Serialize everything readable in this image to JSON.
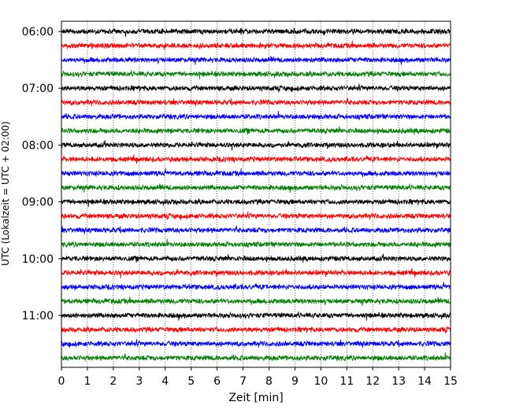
{
  "chart_data": {
    "type": "line",
    "title": "",
    "xlabel": "Zeit  [min]",
    "ylabel": "UTC (Lokalzeit = UTC + 02:00)",
    "xlim": [
      0,
      15
    ],
    "x_ticks": [
      0,
      1,
      2,
      3,
      4,
      5,
      6,
      7,
      8,
      9,
      10,
      11,
      12,
      13,
      14,
      15
    ],
    "y_tick_labels": [
      "06:00",
      "07:00",
      "08:00",
      "09:00",
      "10:00",
      "11:00"
    ],
    "grid": "vertical dotted at each minute",
    "trace_colors": [
      "#000000",
      "#ff0000",
      "#0000ff",
      "#008000"
    ],
    "traces": [
      {
        "start": "06:00",
        "color": "#000000"
      },
      {
        "start": "06:15",
        "color": "#ff0000"
      },
      {
        "start": "06:30",
        "color": "#0000ff"
      },
      {
        "start": "06:45",
        "color": "#008000"
      },
      {
        "start": "07:00",
        "color": "#000000"
      },
      {
        "start": "07:15",
        "color": "#ff0000"
      },
      {
        "start": "07:30",
        "color": "#0000ff"
      },
      {
        "start": "07:45",
        "color": "#008000"
      },
      {
        "start": "08:00",
        "color": "#000000"
      },
      {
        "start": "08:15",
        "color": "#ff0000"
      },
      {
        "start": "08:30",
        "color": "#0000ff"
      },
      {
        "start": "08:45",
        "color": "#008000"
      },
      {
        "start": "09:00",
        "color": "#000000"
      },
      {
        "start": "09:15",
        "color": "#ff0000"
      },
      {
        "start": "09:30",
        "color": "#0000ff"
      },
      {
        "start": "09:45",
        "color": "#008000"
      },
      {
        "start": "10:00",
        "color": "#000000"
      },
      {
        "start": "10:15",
        "color": "#ff0000"
      },
      {
        "start": "10:30",
        "color": "#0000ff"
      },
      {
        "start": "10:45",
        "color": "#008000"
      },
      {
        "start": "11:00",
        "color": "#000000"
      },
      {
        "start": "11:15",
        "color": "#ff0000"
      },
      {
        "start": "11:30",
        "color": "#0000ff"
      },
      {
        "start": "11:45",
        "color": "#008000"
      }
    ]
  }
}
